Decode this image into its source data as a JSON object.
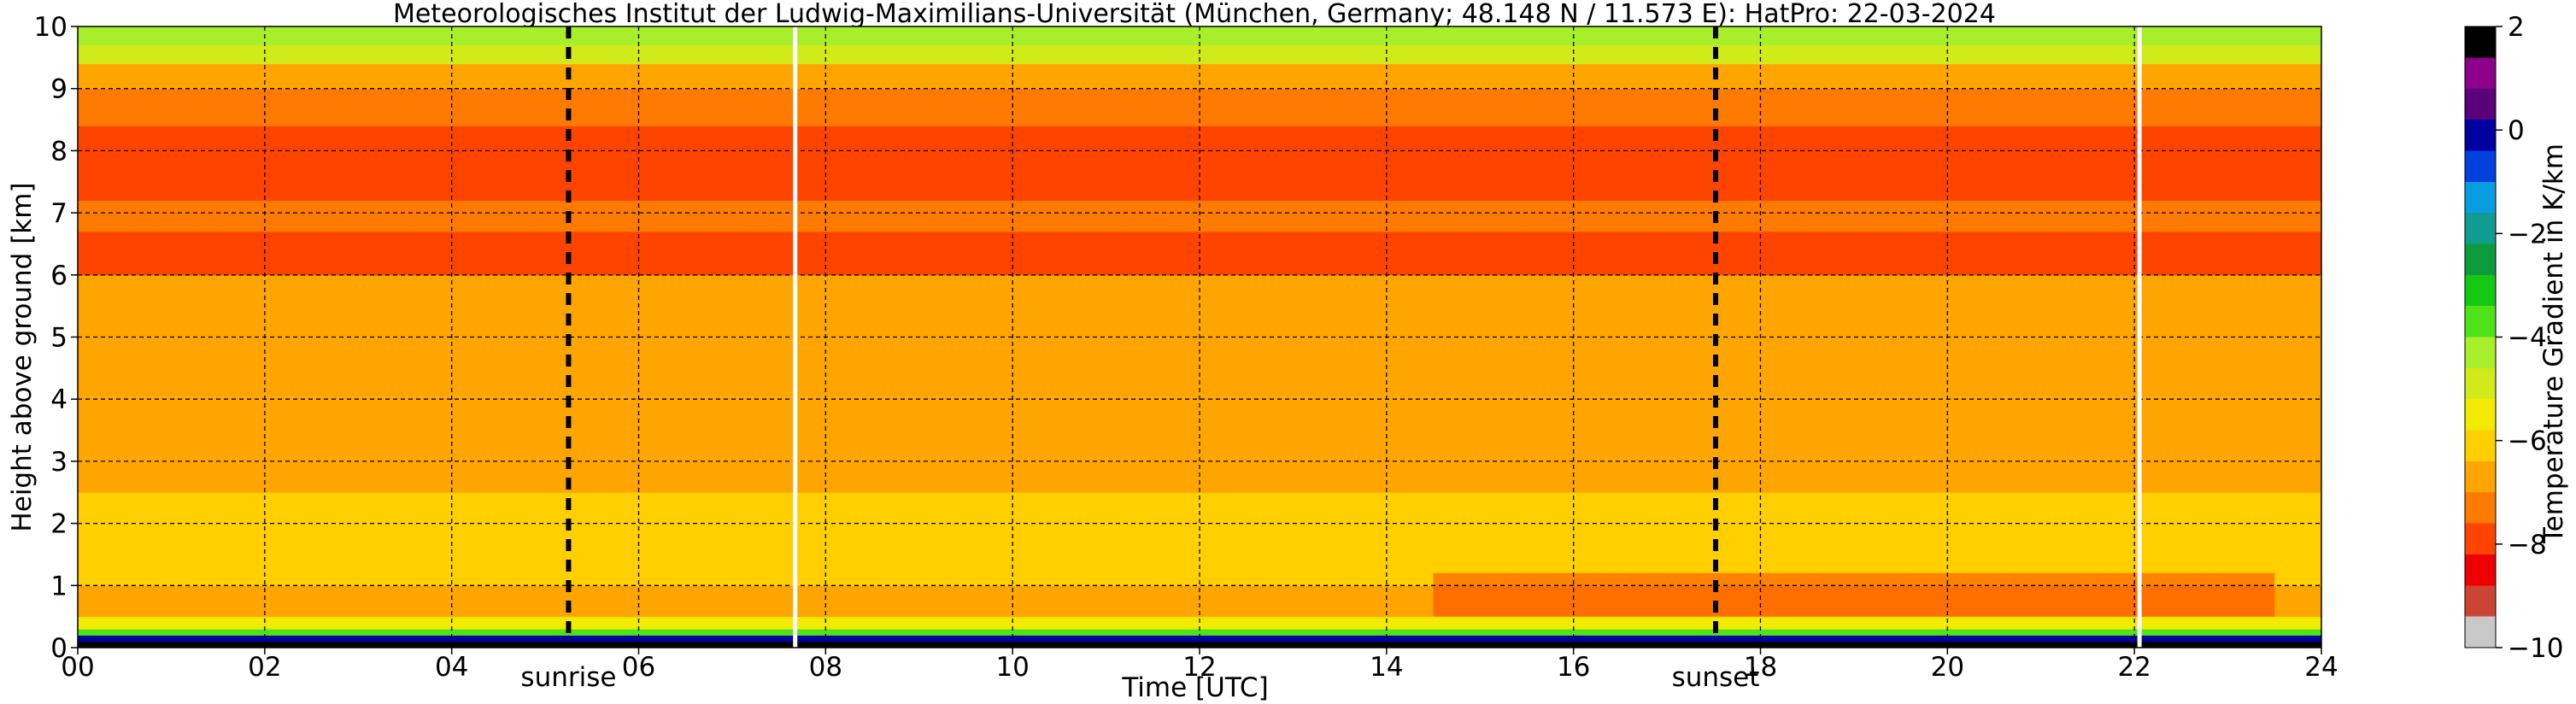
{
  "chart_data": {
    "type": "heatmap",
    "title": "Meteorologisches Institut der Ludwig-Maximilians-Universität (München, Germany; 48.148 N / 11.573 E):    HatPro: 22-03-2024",
    "xlabel": "Time [UTC]",
    "ylabel": "Height above ground [km]",
    "xlim": [
      0,
      24
    ],
    "ylim": [
      0,
      10
    ],
    "xticks": [
      "00",
      "02",
      "04",
      "06",
      "08",
      "10",
      "12",
      "14",
      "16",
      "18",
      "20",
      "22",
      "24"
    ],
    "yticks": [
      "0",
      "1",
      "2",
      "3",
      "4",
      "5",
      "6",
      "7",
      "8",
      "9",
      "10"
    ],
    "grid": true,
    "colorbar": {
      "label": "Temperature Gradient in K/km",
      "range": [
        -10,
        2
      ],
      "ticks": [
        "−10",
        "−8",
        "−6",
        "−4",
        "−2",
        "0",
        "2"
      ],
      "colors": [
        "#c8c8c8",
        "#cc4433",
        "#ee0000",
        "#ff4400",
        "#ff7a00",
        "#ffa500",
        "#ffcf00",
        "#f2ea00",
        "#d2ea1a",
        "#a8ee2a",
        "#4ee21a",
        "#14c814",
        "#0c9c3c",
        "#109c90",
        "#0a9ce0",
        "#0040dc",
        "#0000a0",
        "#5a007a",
        "#8c008c",
        "#000000"
      ]
    },
    "annotations": [
      {
        "text": "sunrise",
        "x": 5.25
      },
      {
        "text": "sunset",
        "x": 17.52
      }
    ],
    "data_gaps_utc": [
      7.67,
      22.05
    ],
    "profile": [
      {
        "height_km": [
          0.0,
          0.1
        ],
        "gradient_k_per_km": 2.0
      },
      {
        "height_km": [
          0.1,
          0.2
        ],
        "gradient_k_per_km": 0.0
      },
      {
        "height_km": [
          0.2,
          0.3
        ],
        "gradient_k_per_km": -3.5
      },
      {
        "height_km": [
          0.3,
          0.5
        ],
        "gradient_k_per_km": -5.5
      },
      {
        "height_km": [
          0.5,
          1.0
        ],
        "gradient_k_per_km": -7.0
      },
      {
        "height_km": [
          1.0,
          2.5
        ],
        "gradient_k_per_km": -6.2
      },
      {
        "height_km": [
          2.5,
          4.5
        ],
        "gradient_k_per_km": -6.6
      },
      {
        "height_km": [
          4.5,
          6.0
        ],
        "gradient_k_per_km": -7.0
      },
      {
        "height_km": [
          6.0,
          6.7
        ],
        "gradient_k_per_km": -7.9
      },
      {
        "height_km": [
          6.7,
          7.2
        ],
        "gradient_k_per_km": -7.4
      },
      {
        "height_km": [
          7.2,
          8.4
        ],
        "gradient_k_per_km": -7.7
      },
      {
        "height_km": [
          8.4,
          9.0
        ],
        "gradient_k_per_km": -7.2
      },
      {
        "height_km": [
          9.0,
          9.4
        ],
        "gradient_k_per_km": -6.8
      },
      {
        "height_km": [
          9.4,
          9.7
        ],
        "gradient_k_per_km": -5.0
      },
      {
        "height_km": [
          9.7,
          10.0
        ],
        "gradient_k_per_km": -4.6
      }
    ],
    "afternoon_boundary_layer": {
      "time_utc": [
        14.5,
        23.5
      ],
      "height_km": [
        0.5,
        1.2
      ],
      "gradient_k_per_km": -7.8
    }
  }
}
